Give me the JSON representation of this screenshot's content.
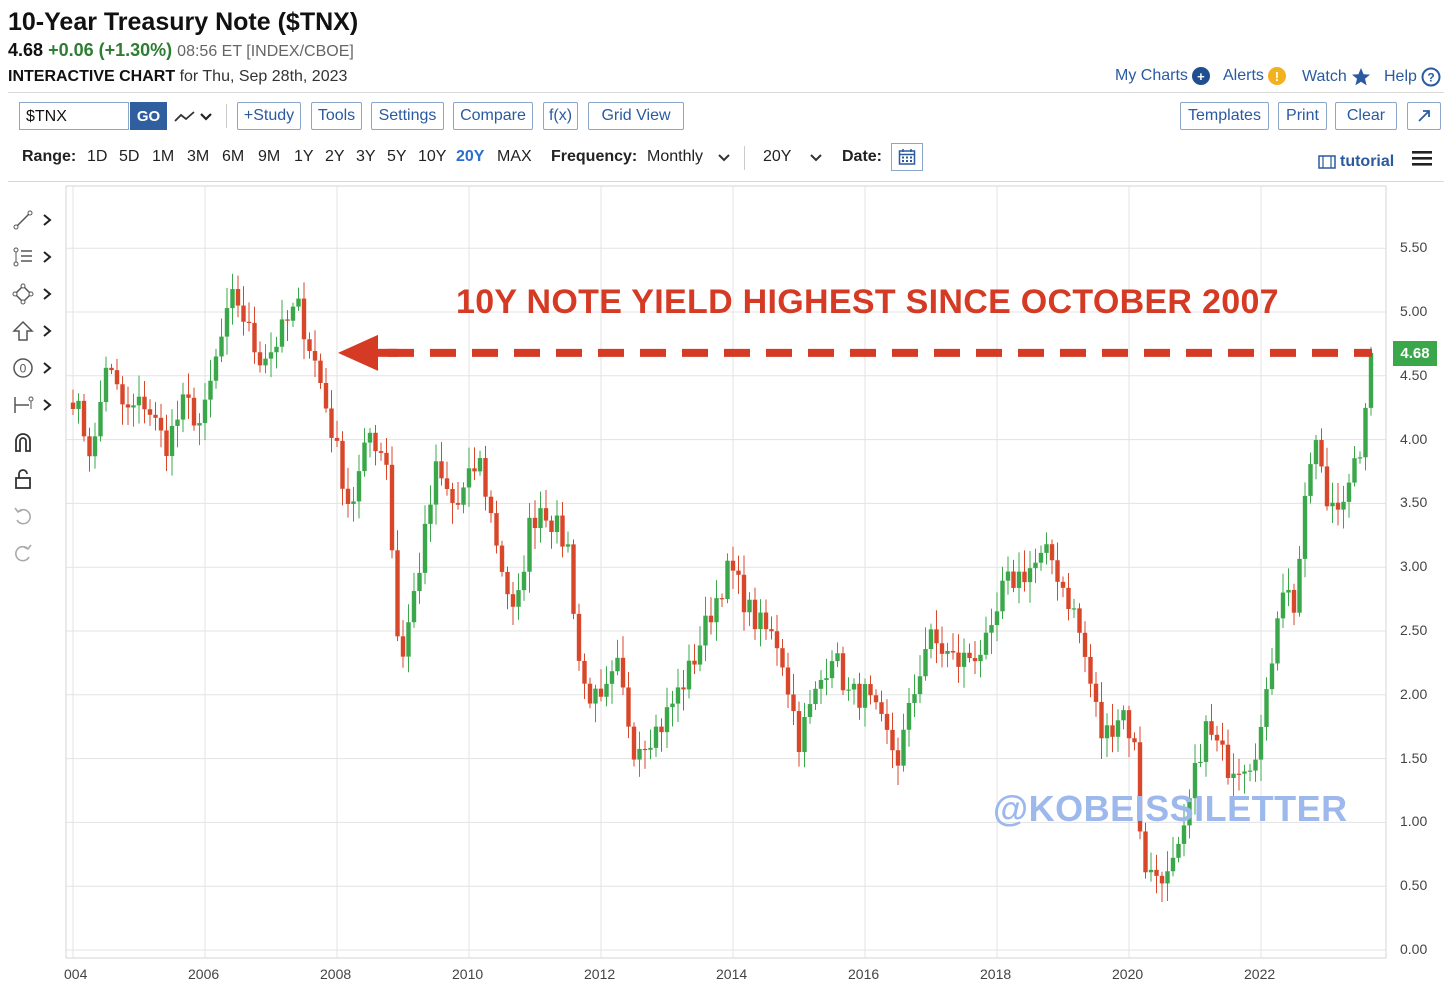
{
  "header": {
    "title": "10-Year Treasury Note ($TNX)",
    "price": "4.68",
    "change": "+0.06 (+1.30%)",
    "meta": "08:56 ET [INDEX/CBOE]",
    "chart_label": "INTERACTIVE CHART",
    "chart_date": "for Thu, Sep 28th, 2023"
  },
  "top_links": {
    "my_charts": "My Charts",
    "alerts": "Alerts",
    "watch": "Watch",
    "help": "Help"
  },
  "toolbar": {
    "symbol_value": "$TNX",
    "go": "GO",
    "study": "+Study",
    "tools": "Tools",
    "settings": "Settings",
    "compare": "Compare",
    "fx": "f(x)",
    "grid_view": "Grid View",
    "templates": "Templates",
    "print": "Print",
    "clear": "Clear",
    "expand_icon": "expand-arrow-icon"
  },
  "range": {
    "label": "Range:",
    "options": [
      "1D",
      "5D",
      "1M",
      "3M",
      "6M",
      "9M",
      "1Y",
      "2Y",
      "3Y",
      "5Y",
      "10Y",
      "20Y",
      "MAX"
    ],
    "active": "20Y",
    "frequency_label": "Frequency:",
    "frequency_value": "Monthly",
    "period_value": "20Y",
    "date_label": "Date:",
    "tutorial": "tutorial"
  },
  "side_tools": [
    "line-draw-icon",
    "fib-icon",
    "shape-icon",
    "arrow-icon",
    "counter-icon",
    "measure-icon",
    "magnet-icon",
    "lock-icon",
    "undo-icon",
    "redo-icon"
  ],
  "annotations": {
    "callout": "10Y NOTE YIELD HIGHEST SINCE OCTOBER 2007",
    "watermark": "@KOBEISSILETTER",
    "arrow_color": "#d43a24"
  },
  "colors": {
    "up": "#3aa84a",
    "down": "#d9472b",
    "accent": "#2a5aa0"
  },
  "chart_data": {
    "type": "candlestick",
    "frequency": "monthly",
    "ylim": [
      0,
      5.75
    ],
    "yticks": [
      "0.00",
      "0.50",
      "1.00",
      "1.50",
      "2.00",
      "2.50",
      "3.00",
      "3.50",
      "4.00",
      "4.50",
      "5.00",
      "5.50"
    ],
    "xticks": [
      "004",
      "2006",
      "2008",
      "2010",
      "2012",
      "2014",
      "2016",
      "2018",
      "2020",
      "2022"
    ],
    "last_value": "4.68",
    "reference_level": 4.68,
    "series": [
      {
        "anchors": [
          [
            2004.0,
            4.35
          ],
          [
            2004.3,
            3.85
          ],
          [
            2004.5,
            4.6
          ],
          [
            2004.8,
            4.2
          ],
          [
            2005.1,
            4.3
          ],
          [
            2005.4,
            3.95
          ],
          [
            2005.7,
            4.3
          ],
          [
            2005.95,
            4.1
          ],
          [
            2006.2,
            4.7
          ],
          [
            2006.45,
            5.15
          ],
          [
            2006.8,
            4.65
          ],
          [
            2007.0,
            4.7
          ],
          [
            2007.4,
            5.05
          ],
          [
            2007.7,
            4.55
          ],
          [
            2008.0,
            3.9
          ],
          [
            2008.2,
            3.45
          ],
          [
            2008.5,
            4.05
          ],
          [
            2008.75,
            3.85
          ],
          [
            2008.95,
            2.2
          ],
          [
            2009.3,
            3.15
          ],
          [
            2009.5,
            3.75
          ],
          [
            2009.8,
            3.45
          ],
          [
            2010.15,
            3.85
          ],
          [
            2010.5,
            3.0
          ],
          [
            2010.7,
            2.55
          ],
          [
            2010.9,
            3.3
          ],
          [
            2011.1,
            3.5
          ],
          [
            2011.5,
            3.15
          ],
          [
            2011.7,
            2.1
          ],
          [
            2012.0,
            1.9
          ],
          [
            2012.25,
            2.2
          ],
          [
            2012.5,
            1.6
          ],
          [
            2012.9,
            1.75
          ],
          [
            2013.35,
            2.2
          ],
          [
            2013.7,
            2.7
          ],
          [
            2013.95,
            3.0
          ],
          [
            2014.3,
            2.6
          ],
          [
            2014.7,
            2.4
          ],
          [
            2015.0,
            1.65
          ],
          [
            2015.5,
            2.35
          ],
          [
            2015.75,
            2.0
          ],
          [
            2016.0,
            2.0
          ],
          [
            2016.5,
            1.5
          ],
          [
            2016.95,
            2.45
          ],
          [
            2017.4,
            2.25
          ],
          [
            2017.9,
            2.4
          ],
          [
            2018.1,
            2.85
          ],
          [
            2018.8,
            3.1
          ],
          [
            2019.2,
            2.6
          ],
          [
            2019.6,
            1.65
          ],
          [
            2019.9,
            1.9
          ],
          [
            2020.1,
            1.55
          ],
          [
            2020.2,
            0.65
          ],
          [
            2020.55,
            0.55
          ],
          [
            2020.8,
            0.85
          ],
          [
            2021.15,
            1.75
          ],
          [
            2021.5,
            1.45
          ],
          [
            2021.85,
            1.5
          ],
          [
            2022.05,
            1.8
          ],
          [
            2022.3,
            2.9
          ],
          [
            2022.5,
            2.7
          ],
          [
            2022.8,
            4.05
          ],
          [
            2023.0,
            3.5
          ],
          [
            2023.35,
            3.6
          ],
          [
            2023.55,
            4.05
          ],
          [
            2023.75,
            4.68
          ]
        ]
      }
    ]
  }
}
